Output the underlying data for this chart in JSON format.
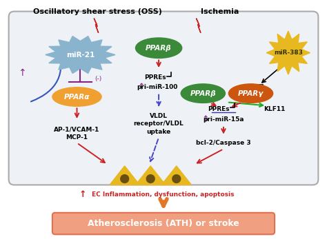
{
  "bg_color": "white",
  "title_oss": "Oscillatory shear stress (OSS)",
  "title_ischemia": "Ischemia",
  "bottom_box_color": "#f0a080",
  "bottom_box_text": "Atherosclerosis (ATH) or stroke",
  "bottom_box_edge": "#e07050",
  "ec_text": " EC Inflammation, dysfunction, apoptosis",
  "mir21_color": "#8ab4ce",
  "mir21_text": "miR-21",
  "ppara_color": "#f0a030",
  "ppara_text": "PPARα",
  "pparb1_color": "#3a8a3a",
  "pparb1_text": "PPARβ",
  "pparb2_color": "#3a8a3a",
  "pparb2_text": "PPARβ",
  "pparg_color": "#cc5510",
  "pparg_text": "PPARγ",
  "mir383_color": "#e8b820",
  "mir383_text": "miR-383",
  "cell_color": "#e8b820",
  "cell_dot_color": "#6a5010",
  "red": "#cc2222",
  "blue": "#4444cc",
  "purple": "#882288",
  "orange": "#e07828",
  "green": "#22aa22",
  "black": "#111111",
  "box_face": "#eef2f6",
  "box_edge": "#aaaaaa"
}
